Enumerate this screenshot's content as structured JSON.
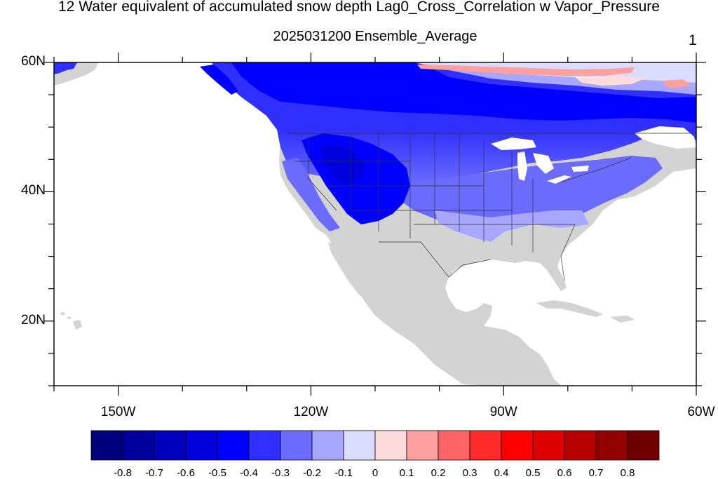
{
  "title": "12 Water equivalent of accumulated snow depth Lag0_Cross_Correlation w Vapor_Pressure",
  "subtitle": "2025031200 Ensemble_Average",
  "panel_number": "1",
  "map": {
    "lon_range": [
      -160,
      -60
    ],
    "lat_range": [
      10,
      60
    ],
    "lat_labels": [
      {
        "value": 60,
        "text": "60N"
      },
      {
        "value": 40,
        "text": "40N"
      },
      {
        "value": 20,
        "text": "20N"
      }
    ],
    "lon_labels": [
      {
        "value": -150,
        "text": "150W"
      },
      {
        "value": -120,
        "text": "120W"
      },
      {
        "value": -90,
        "text": "90W"
      },
      {
        "value": -60,
        "text": "60W"
      }
    ],
    "land_color": "#d3d3d3",
    "ocean_color": "#ffffff"
  },
  "colorbar": {
    "levels": [
      "-0.8",
      "-0.7",
      "-0.6",
      "-0.5",
      "-0.4",
      "-0.3",
      "-0.2",
      "-0.1",
      "0",
      "0.1",
      "0.2",
      "0.3",
      "0.4",
      "0.5",
      "0.6",
      "0.7",
      "0.8"
    ],
    "colors": [
      "#00007f",
      "#00009f",
      "#0000bf",
      "#0000df",
      "#0000ff",
      "#2f2fff",
      "#6b6bff",
      "#a7a7ff",
      "#dcdcff",
      "#ffdcdc",
      "#ffa0a0",
      "#ff6464",
      "#ff2a2a",
      "#ff0000",
      "#dc0000",
      "#b70000",
      "#930000",
      "#700000"
    ]
  }
}
